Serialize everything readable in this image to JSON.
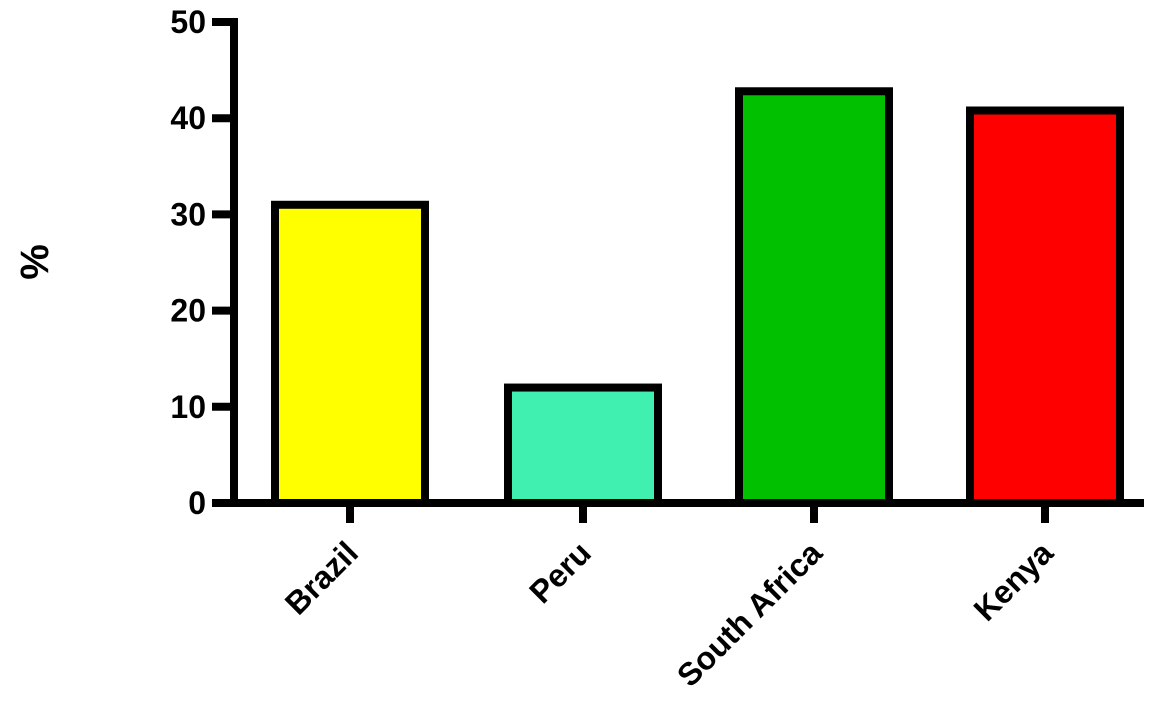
{
  "chart_data": {
    "type": "bar",
    "title": "",
    "xlabel": "",
    "ylabel": "%",
    "categories": [
      "Brazil",
      "Peru",
      "South Africa",
      "Kenya"
    ],
    "values": [
      31,
      12,
      42.8,
      40.8
    ],
    "colors": [
      "#ffff00",
      "#40f0b0",
      "#00c000",
      "#ff0000"
    ],
    "ylim": [
      0,
      50
    ],
    "yticks": [
      "0",
      "10",
      "20",
      "30",
      "40",
      "50"
    ],
    "grid": false,
    "legend": "none"
  }
}
